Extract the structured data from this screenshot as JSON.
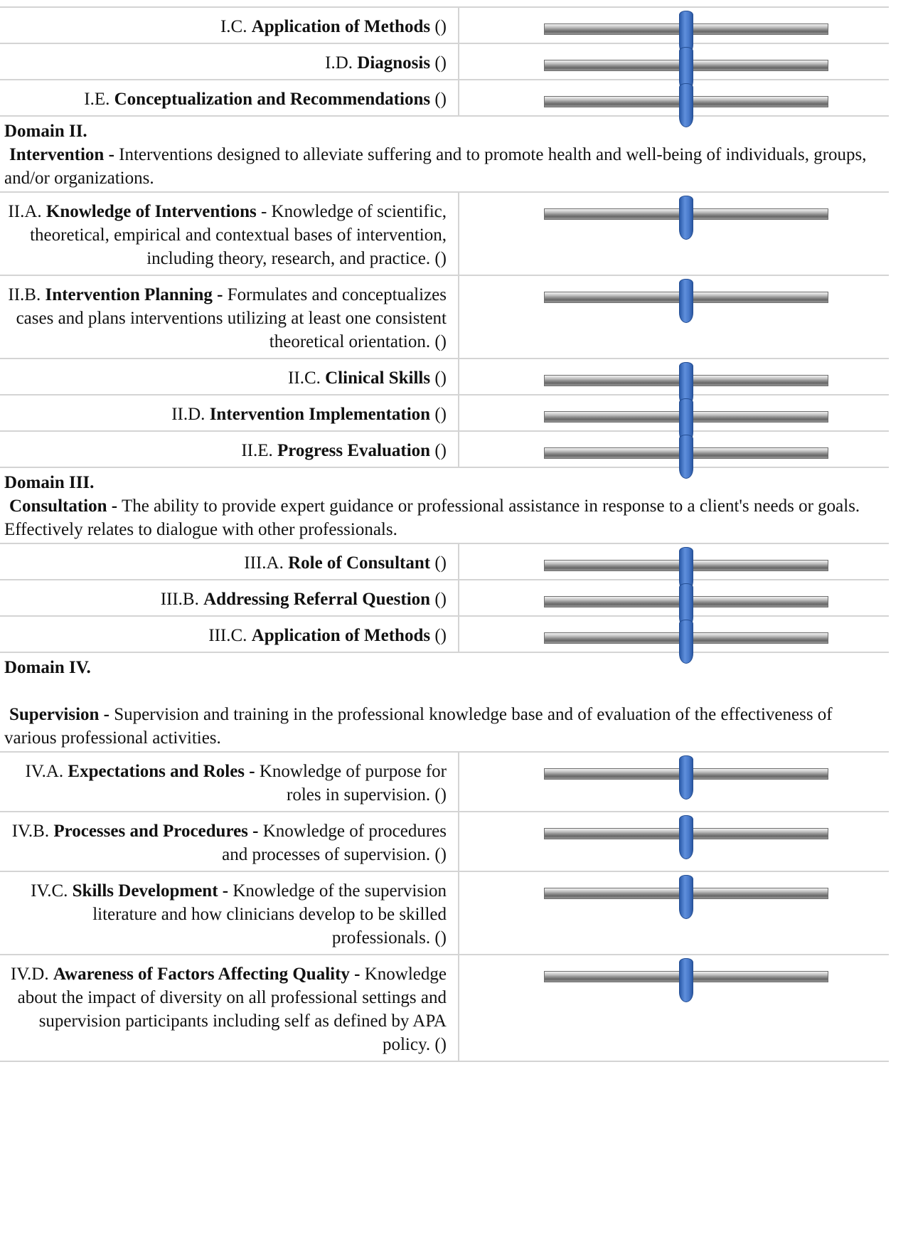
{
  "sections": [
    {
      "domain": null,
      "items": [
        {
          "code": "I.C.",
          "name": "Application of Methods",
          "desc": "",
          "suffix": "()",
          "value": 0.5
        },
        {
          "code": "I.D.",
          "name": "Diagnosis",
          "desc": "",
          "suffix": "()",
          "value": 0.5
        },
        {
          "code": "I.E.",
          "name": "Conceptualization and Recommendations",
          "desc": "",
          "suffix": "()",
          "value": 0.5
        }
      ]
    },
    {
      "domain": {
        "title": "Domain II.",
        "name": "Intervention -",
        "desc": "Interventions designed to alleviate suffering and to promote health and well-being of individuals, groups, and/or organizations.",
        "gap": false
      },
      "items": [
        {
          "code": "II.A.",
          "name": "Knowledge of Interventions",
          "desc": " - Knowledge of scientific, theoretical, empirical and contextual bases of intervention, including theory, research, and practice.",
          "suffix": "()",
          "value": 0.5
        },
        {
          "code": "II.B.",
          "name": "Intervention Planning -",
          "desc": " Formulates and conceptualizes cases and plans interventions utilizing at least one consistent theoretical orientation.",
          "suffix": "()",
          "value": 0.5
        },
        {
          "code": "II.C.",
          "name": "Clinical Skills",
          "desc": "",
          "suffix": "()",
          "value": 0.5
        },
        {
          "code": "II.D.",
          "name": "Intervention Implementation",
          "desc": "",
          "suffix": "()",
          "value": 0.5
        },
        {
          "code": "II.E.",
          "name": "Progress Evaluation",
          "desc": "",
          "suffix": "()",
          "value": 0.5
        }
      ]
    },
    {
      "domain": {
        "title": "Domain III.",
        "name": "Consultation -",
        "desc": "The ability to provide expert guidance or professional assistance in response to a client's needs or goals. Effectively relates to dialogue with other professionals.",
        "gap": false
      },
      "items": [
        {
          "code": "III.A.",
          "name": "Role of Consultant",
          "desc": "",
          "suffix": "()",
          "value": 0.5
        },
        {
          "code": "III.B.",
          "name": "Addressing Referral Question",
          "desc": "",
          "suffix": "()",
          "value": 0.5
        },
        {
          "code": "III.C.",
          "name": "Application of Methods",
          "desc": "",
          "suffix": "()",
          "value": 0.5
        }
      ]
    },
    {
      "domain": {
        "title": "Domain IV.",
        "name": "Supervision -",
        "desc": "Supervision and training in the professional knowledge base and of evaluation of the effectiveness of various professional activities.",
        "gap": true
      },
      "items": [
        {
          "code": "IV.A.",
          "name": "Expectations and Roles -",
          "desc": " Knowledge of purpose for roles in supervision.",
          "suffix": "()",
          "value": 0.5
        },
        {
          "code": "IV.B.",
          "name": "Processes and Procedures -",
          "desc": " Knowledge of procedures and processes of supervision.",
          "suffix": "()",
          "value": 0.5
        },
        {
          "code": "IV.C.",
          "name": "Skills Development -",
          "desc": " Knowledge of the supervision literature and how clinicians develop to be skilled professionals.",
          "suffix": "()",
          "value": 0.5
        },
        {
          "code": "IV.D.",
          "name": "Awareness of Factors Affecting Quality -",
          "desc": " Knowledge about the impact of diversity on all professional settings and supervision participants including self as defined by APA policy.",
          "suffix": "()",
          "value": 0.5
        }
      ]
    }
  ],
  "colors": {
    "thumb": "#4a7bcc",
    "track": "#9a9a9a",
    "rule": "#d4d4d4"
  }
}
